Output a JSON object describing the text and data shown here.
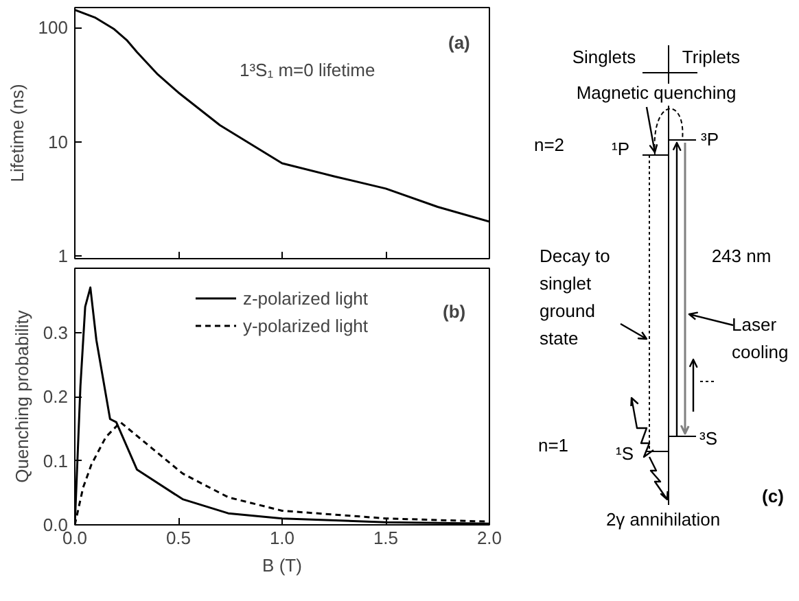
{
  "chart_data": [
    {
      "type": "line",
      "ylabel": "Lifetime (ns)",
      "log": "y",
      "xlim": [
        0,
        2.0
      ],
      "ylim": [
        0.95,
        150
      ],
      "xticks": [
        0.0,
        0.5,
        1.0,
        1.5,
        2.0
      ],
      "yticks": [
        1,
        10,
        100
      ],
      "tick_labels": "y",
      "grid": false,
      "legend": false,
      "annotations": [
        "1³S₁ m=0 lifetime",
        "(a)"
      ],
      "series": [
        {
          "color": "#000000",
          "line_style": "solid",
          "x": [
            0,
            0.1,
            0.19,
            0.25,
            0.3,
            0.4,
            0.5,
            0.7,
            1.0,
            1.25,
            1.5,
            1.75,
            2.0
          ],
          "values": [
            143,
            122,
            97,
            78,
            61,
            39,
            27,
            14,
            6.5,
            5.0,
            3.9,
            2.7,
            2.0
          ]
        }
      ]
    },
    {
      "type": "line",
      "xlabel": "B (T)",
      "ylabel": "Quenching probability",
      "xlim": [
        0,
        2.0
      ],
      "ylim": [
        0,
        0.4
      ],
      "xticks": [
        {
          "value": 0,
          "label": "0.0"
        },
        0.5,
        {
          "value": 1,
          "label": "1.0"
        },
        1.5,
        {
          "value": 2,
          "label": "2.0"
        }
      ],
      "yticks": [
        {
          "value": 0,
          "label": "0.0"
        },
        0.1,
        0.2,
        0.3
      ],
      "grid": false,
      "legend": "top",
      "annotations": [
        "(b)"
      ],
      "series": [
        {
          "name": "z-polarized light",
          "color": "#000000",
          "line_style": "solid",
          "x": [
            0,
            0.01,
            0.027,
            0.05,
            0.075,
            0.104,
            0.17,
            0.2,
            0.3,
            0.52,
            0.74,
            1.0,
            1.5,
            2.0
          ],
          "values": [
            0,
            0.08,
            0.216,
            0.34,
            0.37,
            0.288,
            0.165,
            0.16,
            0.086,
            0.04,
            0.018,
            0.01,
            0.004,
            0.002
          ]
        },
        {
          "name": "y-polarized light",
          "color": "#000000",
          "line_style": "dashed",
          "x": [
            0,
            0.04,
            0.08,
            0.15,
            0.22,
            0.37,
            0.52,
            0.74,
            1.0,
            1.5,
            2.0
          ],
          "values": [
            0,
            0.058,
            0.094,
            0.137,
            0.16,
            0.12,
            0.08,
            0.043,
            0.022,
            0.01,
            0.005
          ]
        }
      ]
    },
    {
      "type": "other",
      "annotations": [
        "Singlets",
        "Triplets",
        "Magnetic quenching",
        "n=2",
        "¹P",
        "³P",
        "Decay to\nsinglet\nground\nstate",
        "243 nm",
        "Laser\ncooling",
        "n=1",
        "¹S",
        "³S",
        "2γ annihilation",
        "(c)"
      ]
    }
  ]
}
